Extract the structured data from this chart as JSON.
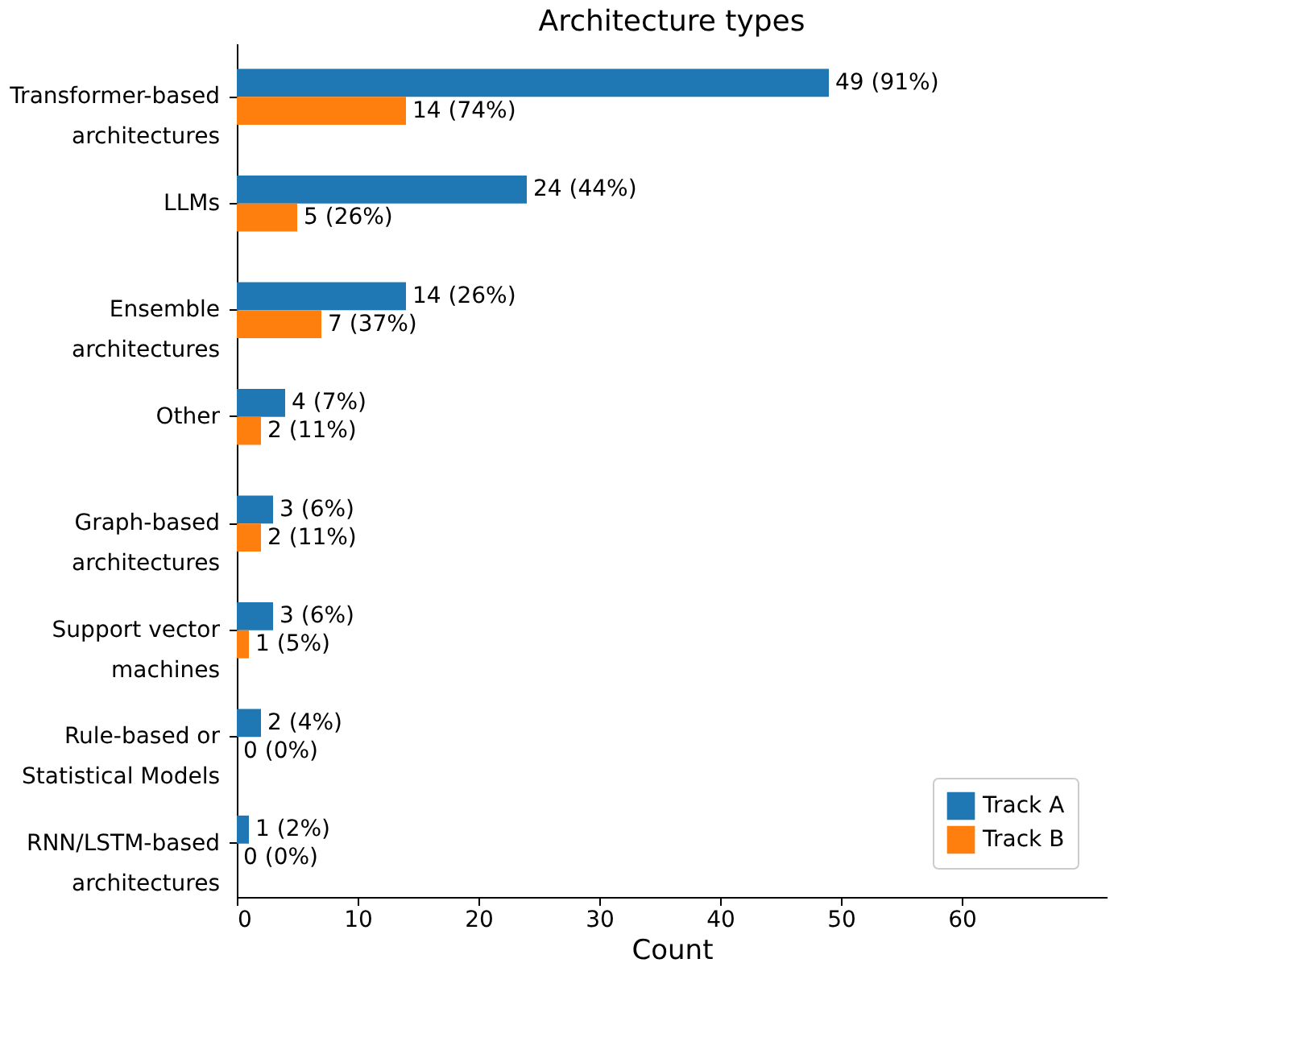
{
  "chart_data": {
    "type": "bar",
    "orientation": "horizontal",
    "title": "Architecture types",
    "xlabel": "Count",
    "categories": [
      "Transformer-based\narchitectures",
      "LLMs",
      "Ensemble\narchitectures",
      "Other",
      "Graph-based\narchitectures",
      "Support vector\nmachines",
      "Rule-based or\nStatistical Models",
      "RNN/LSTM-based\narchitectures"
    ],
    "series": [
      {
        "name": "Track A",
        "color": "#1f77b4",
        "values": [
          49,
          24,
          14,
          4,
          3,
          3,
          2,
          1
        ],
        "value_labels": [
          "49 (91%)",
          "24 (44%)",
          "14 (26%)",
          "4 (7%)",
          "3 (6%)",
          "3 (6%)",
          "2 (4%)",
          "1 (2%)"
        ]
      },
      {
        "name": "Track B",
        "color": "#ff7f0e",
        "values": [
          14,
          5,
          7,
          2,
          2,
          1,
          0,
          0
        ],
        "value_labels": [
          "14 (74%)",
          "5 (26%)",
          "7 (37%)",
          "2 (11%)",
          "2 (11%)",
          "1 (5%)",
          "0 (0%)",
          "0 (0%)"
        ]
      }
    ],
    "xlim": [
      0,
      72
    ],
    "xticks": [
      0,
      10,
      20,
      30,
      40,
      50,
      60
    ],
    "grid": false,
    "legend": "bottom right"
  }
}
